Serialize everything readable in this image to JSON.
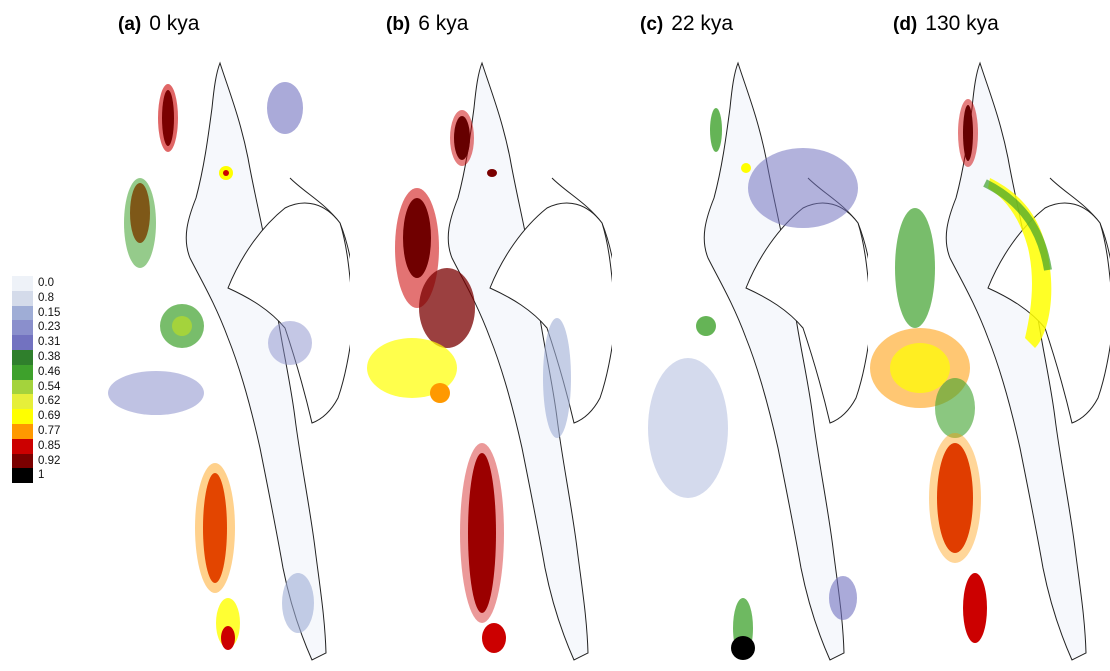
{
  "panels": [
    {
      "letter": "(a)",
      "title": "0 kya"
    },
    {
      "letter": "(b)",
      "title": "6 kya"
    },
    {
      "letter": "(c)",
      "title": "22 kya"
    },
    {
      "letter": "(d)",
      "title": "130 kya"
    }
  ],
  "legend": {
    "items": [
      {
        "label": "0.0",
        "color": "#eef2f8"
      },
      {
        "label": "0.8",
        "color": "#d4dbea"
      },
      {
        "label": "0.15",
        "color": "#9fadd6"
      },
      {
        "label": "0.23",
        "color": "#8a8fcc"
      },
      {
        "label": "0.31",
        "color": "#7272c0"
      },
      {
        "label": "0.38",
        "color": "#2f7f2c"
      },
      {
        "label": "0.46",
        "color": "#3ea12c"
      },
      {
        "label": "0.54",
        "color": "#a4d33c"
      },
      {
        "label": "0.62",
        "color": "#e6ef3a"
      },
      {
        "label": "0.69",
        "color": "#ffff00"
      },
      {
        "label": "0.77",
        "color": "#ff9900"
      },
      {
        "label": "0.85",
        "color": "#cc0000"
      },
      {
        "label": "0.92",
        "color": "#7a0000"
      },
      {
        "label": "1",
        "color": "#000000"
      }
    ]
  },
  "map": {
    "peninsula_fill": "#f6f8fc",
    "coast_color": "#222222"
  }
}
